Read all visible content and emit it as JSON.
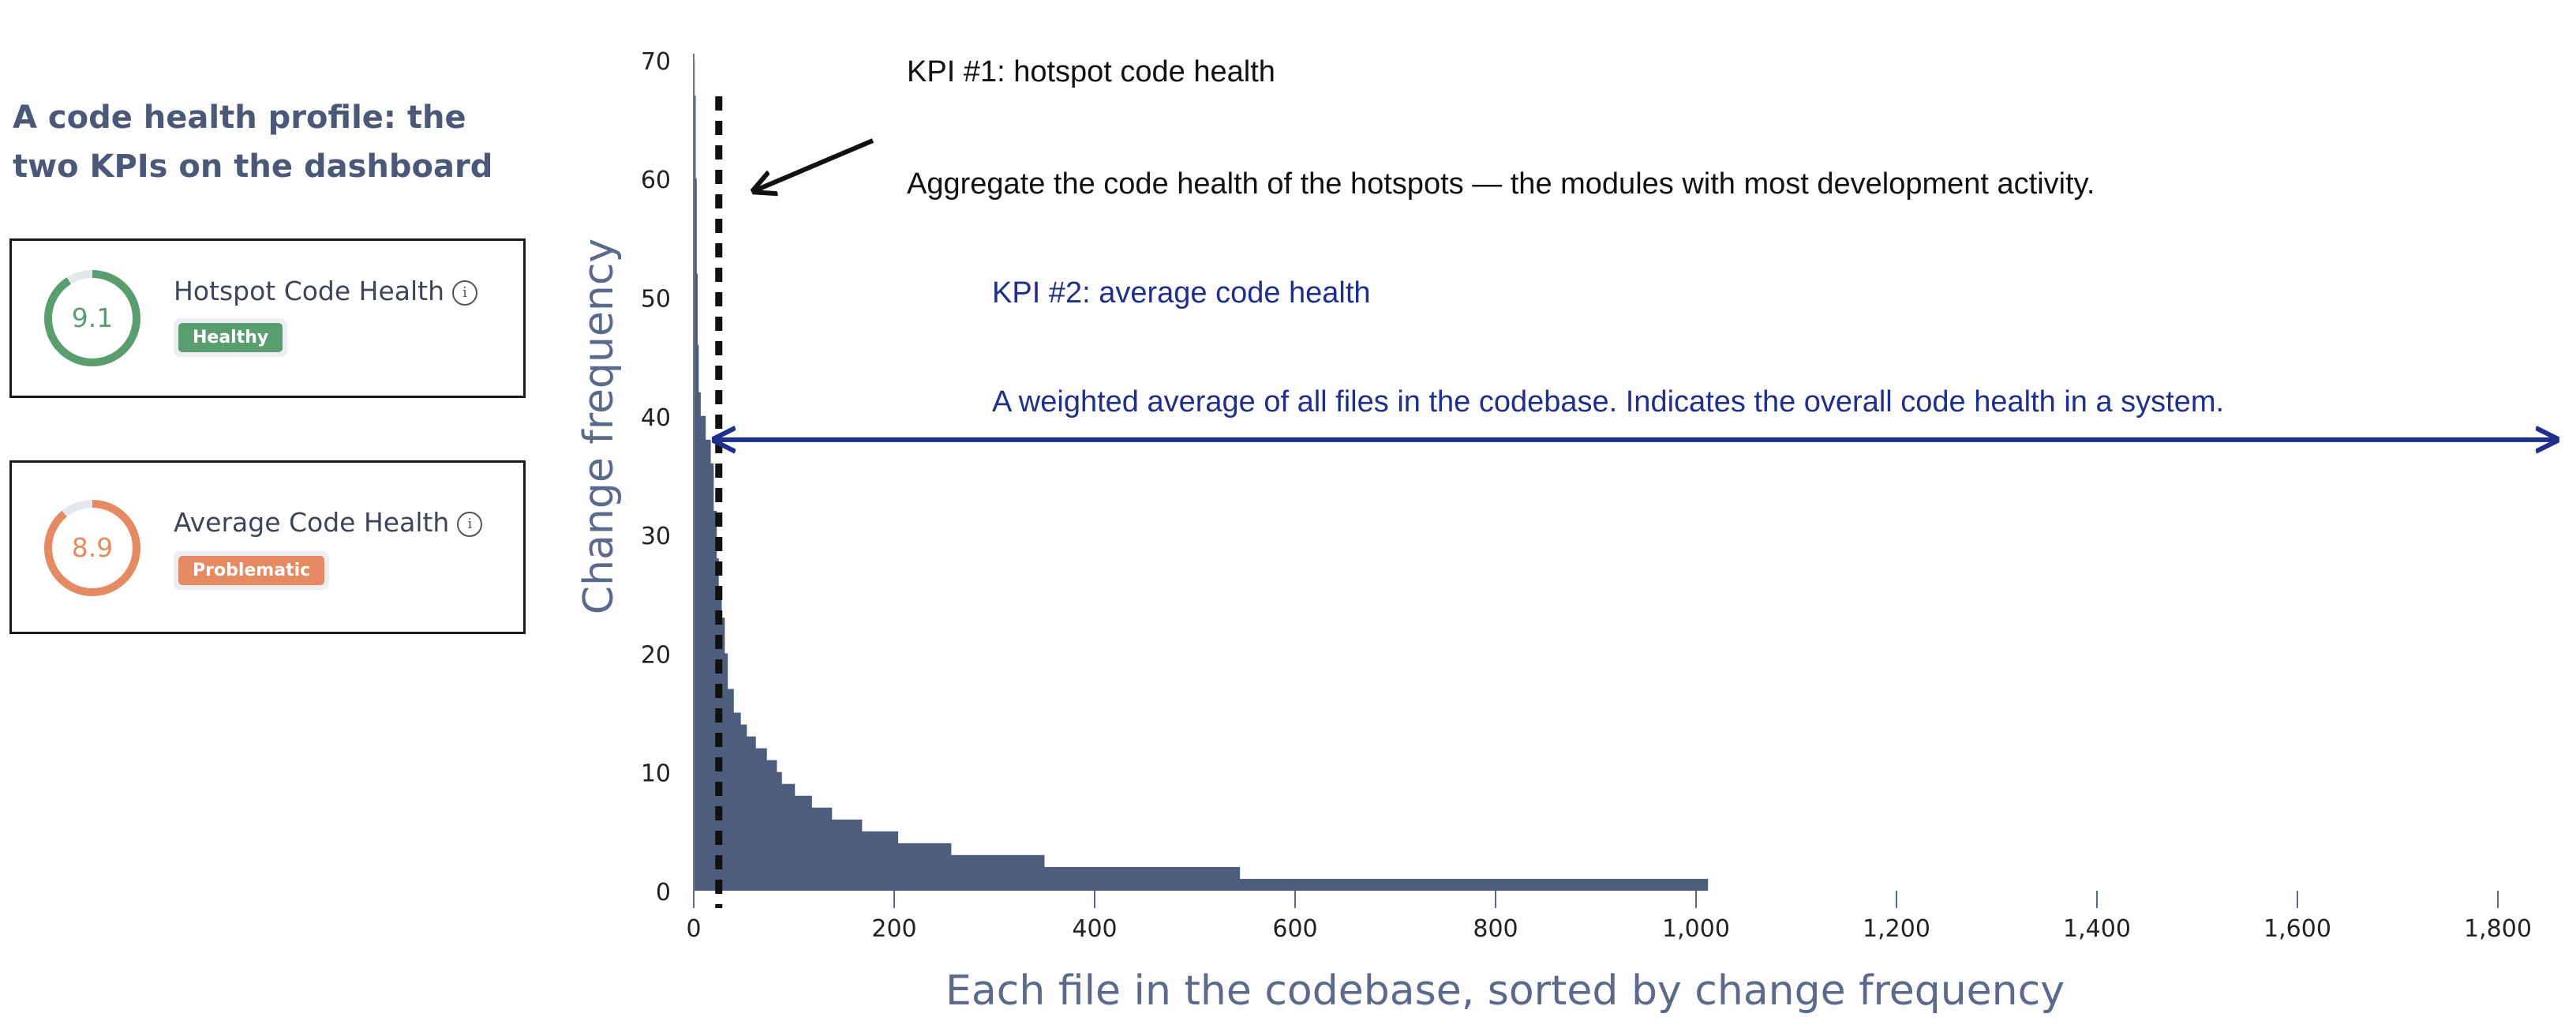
{
  "heading": "A code health profile: the two KPIs on the dashboard",
  "kpi_cards": [
    {
      "title": "Hotspot Code Health",
      "value": "9.1",
      "score": 9.1,
      "max": 10,
      "badge": "Healthy",
      "color": "#5a9e6f",
      "info_icon": "info-icon"
    },
    {
      "title": "Average Code Health",
      "value": "8.9",
      "score": 8.9,
      "max": 10,
      "badge": "Problematic",
      "color": "#e58a62",
      "info_icon": "info-icon"
    }
  ],
  "annotations": {
    "kpi1_title": "KPI #1: hotspot code health",
    "kpi1_text": "Aggregate the code health of the hotspots — the modules with most development activity.",
    "kpi2_title": "KPI #2: average code health",
    "kpi2_text": "A weighted average of all files in the codebase. Indicates the overall code health in a system.",
    "kpi1_color": "#111111",
    "kpi2_color": "#1f2f8a"
  },
  "chart_data": {
    "type": "area",
    "step": true,
    "xlabel": "Each file in the codebase, sorted by change frequency",
    "ylabel": "Change frequency",
    "xlim": [
      0,
      1800
    ],
    "ylim": [
      0,
      70
    ],
    "xticks": [
      0,
      200,
      400,
      600,
      800,
      1000,
      1200,
      1400,
      1600,
      1800
    ],
    "xtick_labels": [
      "0",
      "200",
      "400",
      "600",
      "800",
      "1,000",
      "1,200",
      "1,400",
      "1,600",
      "1,800"
    ],
    "yticks": [
      0,
      10,
      20,
      30,
      40,
      50,
      60,
      70
    ],
    "ytick_labels": [
      "0",
      "10",
      "20",
      "30",
      "40",
      "50",
      "60",
      "70"
    ],
    "grid": false,
    "fill_color": "#4f5d7c",
    "x": [
      0,
      1,
      2,
      3,
      4,
      5,
      7,
      12,
      17,
      20,
      23,
      25,
      28,
      31,
      34,
      40,
      47,
      53,
      62,
      73,
      83,
      88,
      101,
      118,
      138,
      168,
      204,
      257,
      350,
      545,
      1012
    ],
    "y": [
      70,
      67,
      60,
      52,
      46,
      42,
      40,
      38,
      36,
      32,
      28,
      25,
      23,
      20,
      17,
      15,
      14,
      13,
      12,
      11,
      10,
      9,
      8,
      7,
      6,
      5,
      4,
      3,
      2,
      1,
      0
    ],
    "hotspot_cutoff_x": 25,
    "average_marker_y": 38
  }
}
